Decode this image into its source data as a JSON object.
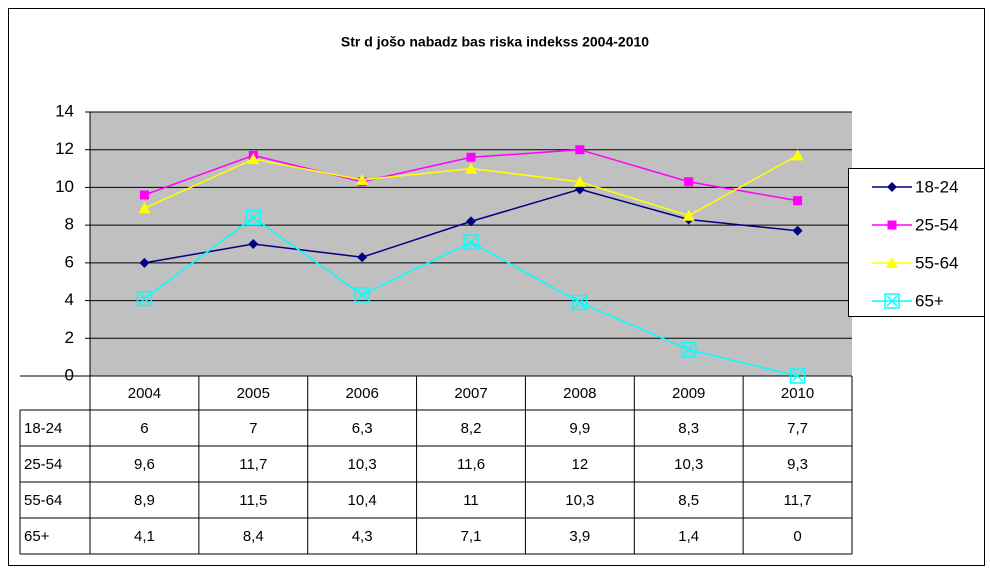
{
  "chart_data": {
    "type": "line",
    "title": "Str  d  jošo nabadz bas riska indekss 2004-2010",
    "categories": [
      "2004",
      "2005",
      "2006",
      "2007",
      "2008",
      "2009",
      "2010"
    ],
    "series": [
      {
        "name": "18-24",
        "color": "#000080",
        "marker": "diamond",
        "values": [
          6,
          7,
          6.3,
          8.2,
          9.9,
          8.3,
          7.7
        ],
        "value_labels": [
          "6",
          "7",
          "6,3",
          "8,2",
          "9,9",
          "8,3",
          "7,7"
        ]
      },
      {
        "name": "25-54",
        "color": "#ff00ff",
        "marker": "square",
        "values": [
          9.6,
          11.7,
          10.3,
          11.6,
          12,
          10.3,
          9.3
        ],
        "value_labels": [
          "9,6",
          "11,7",
          "10,3",
          "11,6",
          "12",
          "10,3",
          "9,3"
        ]
      },
      {
        "name": "55-64",
        "color": "#ffff00",
        "marker": "triangle",
        "values": [
          8.9,
          11.5,
          10.4,
          11,
          10.3,
          8.5,
          11.7
        ],
        "value_labels": [
          "8,9",
          "11,5",
          "10,4",
          "11",
          "10,3",
          "8,5",
          "11,7"
        ]
      },
      {
        "name": "65+",
        "color": "#00ffff",
        "marker": "x",
        "values": [
          4.1,
          8.4,
          4.3,
          7.1,
          3.9,
          1.4,
          0
        ],
        "value_labels": [
          "4,1",
          "8,4",
          "4,3",
          "7,1",
          "3,9",
          "1,4",
          "0"
        ]
      }
    ],
    "ylim": [
      0,
      14
    ],
    "yticks": [
      0,
      2,
      4,
      6,
      8,
      10,
      12,
      14
    ],
    "grid": true,
    "legend": "right",
    "plot_background": "#c0c0c0"
  }
}
